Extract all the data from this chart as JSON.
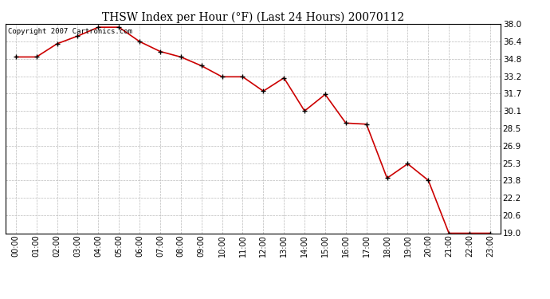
{
  "title": "THSW Index per Hour (°F) (Last 24 Hours) 20070112",
  "copyright_text": "Copyright 2007 Cartronics.com",
  "hours": [
    "00:00",
    "01:00",
    "02:00",
    "03:00",
    "04:00",
    "05:00",
    "06:00",
    "07:00",
    "08:00",
    "09:00",
    "10:00",
    "11:00",
    "12:00",
    "13:00",
    "14:00",
    "15:00",
    "16:00",
    "17:00",
    "18:00",
    "19:00",
    "20:00",
    "21:00",
    "22:00",
    "23:00"
  ],
  "values": [
    35.0,
    35.0,
    36.2,
    36.9,
    37.7,
    37.7,
    36.4,
    35.5,
    35.0,
    34.2,
    33.2,
    33.2,
    31.9,
    33.1,
    30.1,
    31.6,
    29.0,
    28.9,
    24.0,
    25.3,
    23.8,
    19.0,
    19.0,
    19.0
  ],
  "line_color": "#cc0000",
  "marker_color": "#000000",
  "background_color": "#ffffff",
  "grid_color": "#bbbbbb",
  "ylim_min": 19.0,
  "ylim_max": 38.0,
  "yticks": [
    19.0,
    20.6,
    22.2,
    23.8,
    25.3,
    26.9,
    28.5,
    30.1,
    31.7,
    33.2,
    34.8,
    36.4,
    38.0
  ]
}
